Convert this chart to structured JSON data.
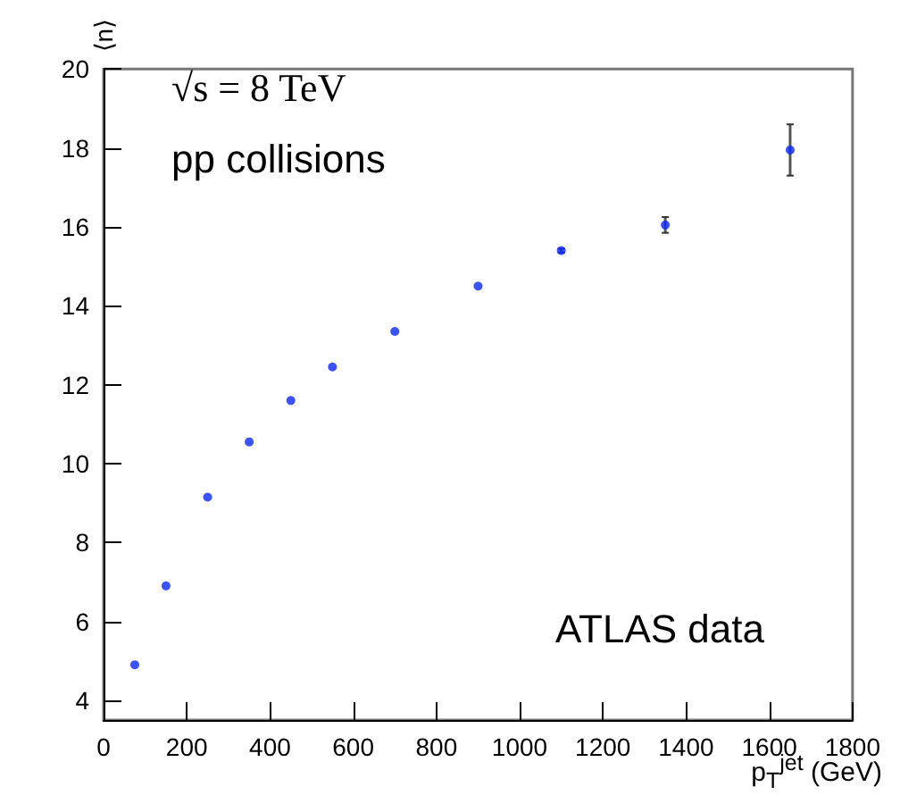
{
  "chart_data": {
    "type": "scatter",
    "ylabel": "⟨n⟩",
    "xlabel": "p$_{T}$$^{jet}$ (GeV)",
    "annotations": [
      "√s = 8 TeV",
      "pp collisions",
      "ATLAS data"
    ],
    "x": [
      75,
      150,
      250,
      350,
      450,
      550,
      700,
      900,
      1100,
      1350,
      1650
    ],
    "series": [
      {
        "color": "#0a28ff",
        "values": [
          4.9,
          6.9,
          9.15,
          10.55,
          11.6,
          12.45,
          13.35,
          14.5,
          15.4,
          16.05,
          17.95
        ],
        "errors": [
          null,
          null,
          null,
          null,
          null,
          null,
          null,
          null,
          0.05,
          0.2,
          0.65
        ]
      }
    ],
    "xlim": [
      0,
      1800
    ],
    "xticks": [
      0,
      200,
      400,
      600,
      800,
      1000,
      1200,
      1400,
      1600,
      1800
    ],
    "ylim": [
      3.5,
      20
    ],
    "yticks": [
      4,
      6,
      8,
      10,
      12,
      14,
      16,
      18,
      20
    ],
    "grid": false,
    "legend": false,
    "marker": "circle"
  }
}
